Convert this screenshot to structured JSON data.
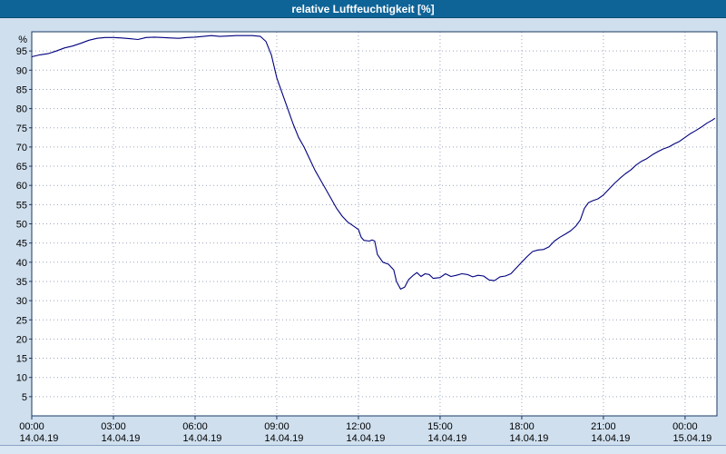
{
  "title_bar": {
    "title": "relative Luftfeuchtigkeit [%]"
  },
  "colors": {
    "titlebar_bg": "#0f6497",
    "titlebar_text": "#ffffff",
    "page_bg": "#cfdfee",
    "plot_bg": "#ffffff",
    "plot_border": "#1a3a64",
    "grid": "#9aa6bf",
    "line": "#00007f",
    "tick_text": "#000000"
  },
  "chart_data": {
    "type": "line",
    "title": "relative Luftfeuchtigkeit [%]",
    "xlabel": "",
    "ylabel": "%",
    "ylim": [
      0,
      100
    ],
    "xlim_hours": [
      0,
      25.17
    ],
    "grid": true,
    "legend": "none",
    "y_ticks": [
      5,
      10,
      15,
      20,
      25,
      30,
      35,
      40,
      45,
      50,
      55,
      60,
      65,
      70,
      75,
      80,
      85,
      90,
      95
    ],
    "x_ticks": [
      {
        "hour": 0,
        "time": "00:00",
        "date": "14.04.19"
      },
      {
        "hour": 3,
        "time": "03:00",
        "date": "14.04.19"
      },
      {
        "hour": 6,
        "time": "06:00",
        "date": "14.04.19"
      },
      {
        "hour": 9,
        "time": "09:00",
        "date": "14.04.19"
      },
      {
        "hour": 12,
        "time": "12:00",
        "date": "14.04.19"
      },
      {
        "hour": 15,
        "time": "15:00",
        "date": "14.04.19"
      },
      {
        "hour": 18,
        "time": "18:00",
        "date": "14.04.19"
      },
      {
        "hour": 21,
        "time": "21:00",
        "date": "14.04.19"
      },
      {
        "hour": 24,
        "time": "00:00",
        "date": "15.04.19"
      }
    ],
    "series": [
      {
        "name": "relative Luftfeuchtigkeit",
        "color": "#00007f",
        "points": [
          [
            0,
            93.5
          ],
          [
            0.3,
            94
          ],
          [
            0.6,
            94.3
          ],
          [
            0.9,
            95
          ],
          [
            1.2,
            95.8
          ],
          [
            1.5,
            96.3
          ],
          [
            1.8,
            97
          ],
          [
            2.1,
            97.8
          ],
          [
            2.4,
            98.3
          ],
          [
            2.7,
            98.5
          ],
          [
            3,
            98.5
          ],
          [
            3.3,
            98.4
          ],
          [
            3.6,
            98.2
          ],
          [
            3.9,
            98.0
          ],
          [
            4.2,
            98.5
          ],
          [
            4.5,
            98.6
          ],
          [
            4.8,
            98.5
          ],
          [
            5.1,
            98.4
          ],
          [
            5.4,
            98.3
          ],
          [
            5.7,
            98.5
          ],
          [
            6,
            98.6
          ],
          [
            6.3,
            98.8
          ],
          [
            6.6,
            99
          ],
          [
            6.9,
            98.8
          ],
          [
            7.2,
            98.9
          ],
          [
            7.5,
            99
          ],
          [
            7.8,
            99
          ],
          [
            8.1,
            99
          ],
          [
            8.4,
            98.8
          ],
          [
            8.6,
            97.5
          ],
          [
            8.8,
            94
          ],
          [
            9,
            88
          ],
          [
            9.2,
            84
          ],
          [
            9.4,
            80
          ],
          [
            9.6,
            76
          ],
          [
            9.8,
            72.5
          ],
          [
            10,
            70
          ],
          [
            10.2,
            67
          ],
          [
            10.4,
            64
          ],
          [
            10.6,
            61.5
          ],
          [
            10.8,
            59
          ],
          [
            11,
            56.5
          ],
          [
            11.2,
            54
          ],
          [
            11.4,
            52
          ],
          [
            11.6,
            50.5
          ],
          [
            11.8,
            49.5
          ],
          [
            12,
            48.5
          ],
          [
            12.1,
            46.5
          ],
          [
            12.2,
            45.7
          ],
          [
            12.4,
            45.5
          ],
          [
            12.5,
            45.8
          ],
          [
            12.6,
            45.5
          ],
          [
            12.7,
            42
          ],
          [
            12.9,
            40
          ],
          [
            13.1,
            39.5
          ],
          [
            13.3,
            38
          ],
          [
            13.4,
            35
          ],
          [
            13.55,
            33
          ],
          [
            13.7,
            33.5
          ],
          [
            13.85,
            35.5
          ],
          [
            14,
            36.5
          ],
          [
            14.15,
            37.3
          ],
          [
            14.3,
            36.3
          ],
          [
            14.45,
            37
          ],
          [
            14.6,
            36.8
          ],
          [
            14.75,
            35.8
          ],
          [
            15,
            36
          ],
          [
            15.2,
            37
          ],
          [
            15.4,
            36.3
          ],
          [
            15.6,
            36.6
          ],
          [
            15.8,
            37
          ],
          [
            16,
            36.8
          ],
          [
            16.2,
            36.2
          ],
          [
            16.4,
            36.6
          ],
          [
            16.6,
            36.4
          ],
          [
            16.8,
            35.4
          ],
          [
            17,
            35.2
          ],
          [
            17.2,
            36.2
          ],
          [
            17.4,
            36.4
          ],
          [
            17.6,
            37
          ],
          [
            17.8,
            38.5
          ],
          [
            18,
            40
          ],
          [
            18.2,
            41.5
          ],
          [
            18.4,
            42.8
          ],
          [
            18.6,
            43.2
          ],
          [
            18.8,
            43.3
          ],
          [
            19,
            44
          ],
          [
            19.2,
            45.5
          ],
          [
            19.4,
            46.5
          ],
          [
            19.6,
            47.3
          ],
          [
            19.8,
            48.2
          ],
          [
            20,
            49.5
          ],
          [
            20.15,
            51
          ],
          [
            20.3,
            54
          ],
          [
            20.45,
            55.5
          ],
          [
            20.6,
            56
          ],
          [
            20.8,
            56.5
          ],
          [
            21,
            57.5
          ],
          [
            21.2,
            59
          ],
          [
            21.4,
            60.5
          ],
          [
            21.6,
            61.8
          ],
          [
            21.8,
            63
          ],
          [
            22,
            64
          ],
          [
            22.2,
            65.3
          ],
          [
            22.4,
            66.3
          ],
          [
            22.6,
            67
          ],
          [
            22.8,
            68
          ],
          [
            23,
            68.8
          ],
          [
            23.2,
            69.5
          ],
          [
            23.4,
            70
          ],
          [
            23.6,
            70.8
          ],
          [
            23.8,
            71.5
          ],
          [
            24,
            72.5
          ],
          [
            24.2,
            73.5
          ],
          [
            24.4,
            74.3
          ],
          [
            24.6,
            75.2
          ],
          [
            24.8,
            76.2
          ],
          [
            25,
            77
          ],
          [
            25.1,
            77.5
          ]
        ]
      }
    ]
  }
}
